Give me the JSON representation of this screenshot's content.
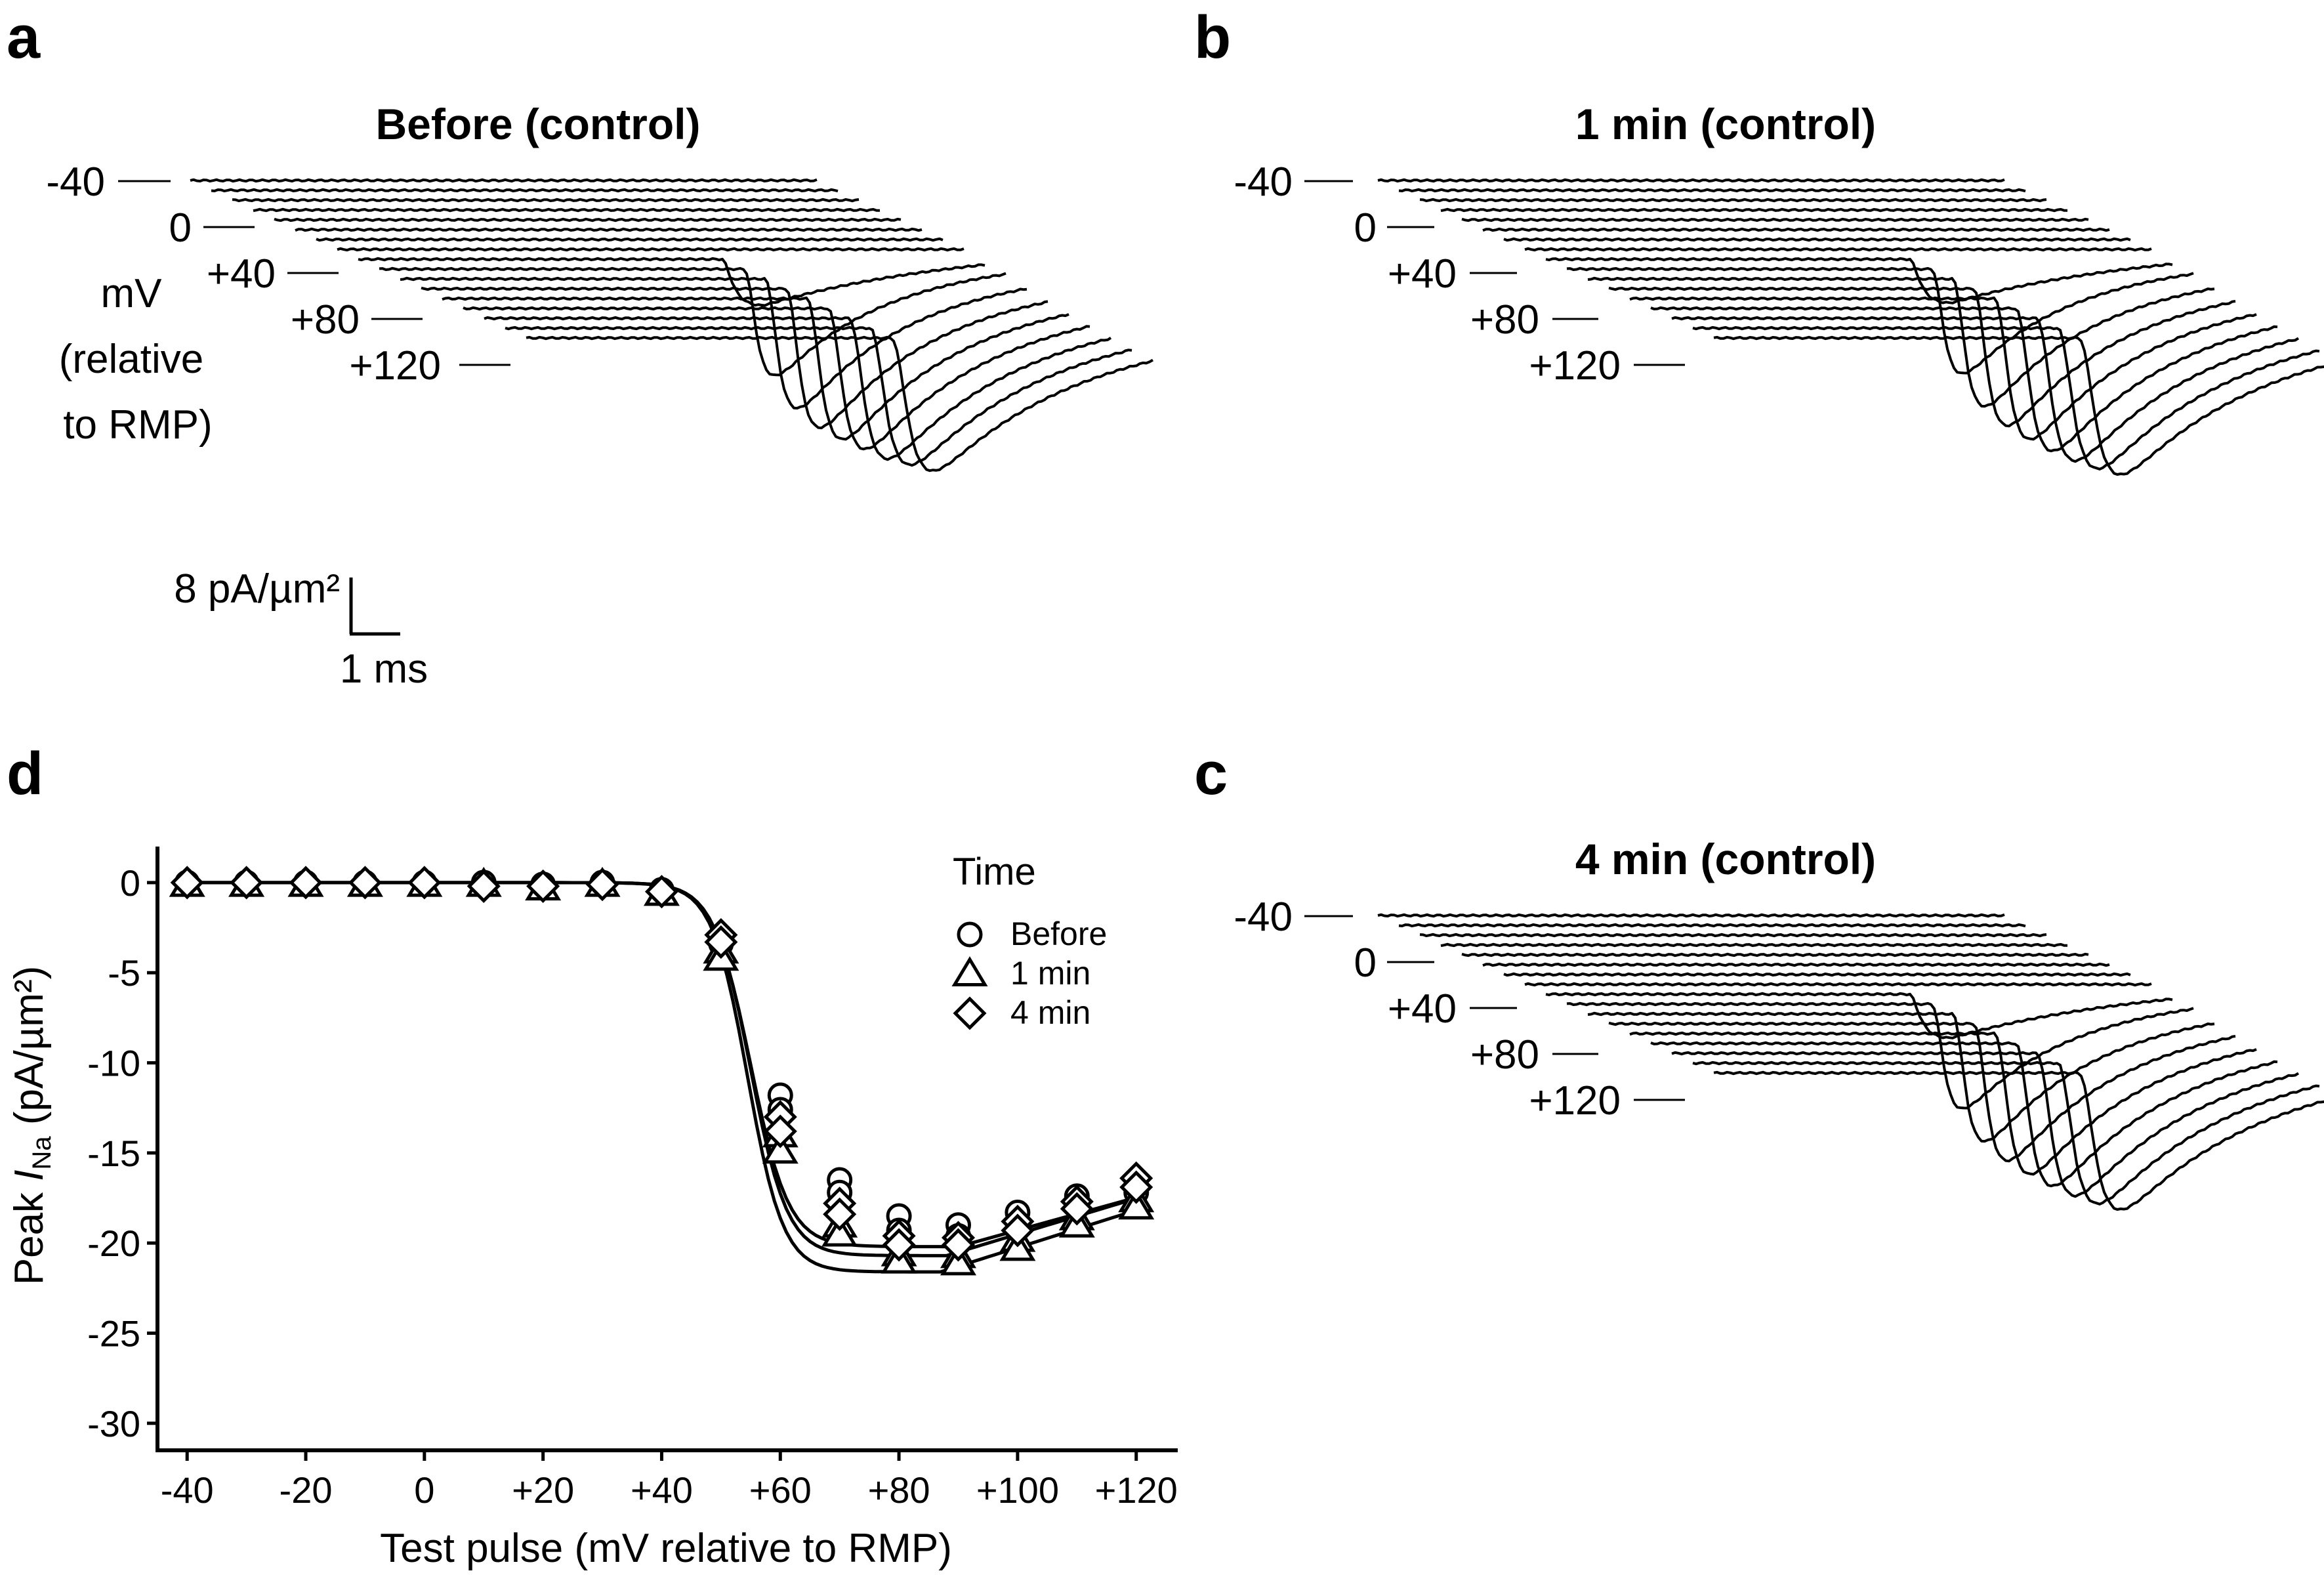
{
  "panels": {
    "a": {
      "letter": "a",
      "title": "Before (control)",
      "peak_depth": [
        0.19,
        0.56,
        0.68,
        0.73,
        0.74,
        0.74,
        0.74,
        0.72,
        0.7
      ]
    },
    "b": {
      "letter": "b",
      "title": "1 min (control)",
      "peak_depth": [
        0.18,
        0.55,
        0.67,
        0.72,
        0.74,
        0.75,
        0.75,
        0.74,
        0.72
      ]
    },
    "c": {
      "letter": "c",
      "title": "4 min (control)",
      "peak_depth": [
        0.18,
        0.55,
        0.67,
        0.72,
        0.74,
        0.75,
        0.75,
        0.74,
        0.72
      ]
    },
    "d": {
      "letter": "d"
    }
  },
  "trace_legend": {
    "voltage_labels": [
      "-40",
      "0",
      "+40",
      "+80",
      "+120"
    ],
    "unit_lines": [
      "mV",
      "(relative",
      "to RMP)"
    ],
    "scale_y_label": "8 pA/µm²",
    "scale_x_label": "1 ms"
  },
  "chart_data": {
    "type": "scatter",
    "title": "",
    "xlabel": "Test pulse (mV relative to RMP)",
    "ylabel_prefix": "Peak ",
    "ylabel_italic": "I",
    "ylabel_sub": "Na",
    "ylabel_suffix": " (pA/µm²)",
    "xlim": [
      -45,
      127
    ],
    "ylim": [
      -31.5,
      2
    ],
    "xticks": [
      -40,
      -20,
      0,
      20,
      40,
      60,
      80,
      100,
      120
    ],
    "xtick_labels": [
      "-40",
      "-20",
      "0",
      "+20",
      "+40",
      "+60",
      "+80",
      "+100",
      "+120"
    ],
    "yticks": [
      0,
      -5,
      -10,
      -15,
      -20,
      -25,
      -30
    ],
    "ytick_labels": [
      "0",
      "-5",
      "-10",
      "-15",
      "-20",
      "-25",
      "-30"
    ],
    "legend_title": "Time",
    "legend_position": "top-right",
    "x": [
      -40,
      -30,
      -20,
      -10,
      0,
      10,
      20,
      30,
      40,
      50,
      60,
      70,
      80,
      90,
      100,
      110,
      120
    ],
    "series": [
      {
        "name": "Before",
        "marker": "circle",
        "points": [
          [
            -40,
            0
          ],
          [
            -30,
            0
          ],
          [
            -20,
            0
          ],
          [
            -10,
            0
          ],
          [
            0,
            0
          ],
          [
            10,
            0
          ],
          [
            20,
            -0.1
          ],
          [
            30,
            0
          ],
          [
            40,
            -0.4
          ],
          [
            50,
            -3.0
          ],
          [
            50,
            -3.4
          ],
          [
            60,
            -11.8
          ],
          [
            60,
            -12.6
          ],
          [
            70,
            -16.5
          ],
          [
            70,
            -17.2
          ],
          [
            80,
            -18.5
          ],
          [
            80,
            -19.3
          ],
          [
            90,
            -19.0
          ],
          [
            90,
            -19.6
          ],
          [
            100,
            -18.3
          ],
          [
            100,
            -18.9
          ],
          [
            110,
            -17.4
          ],
          [
            110,
            -17.9
          ],
          [
            120,
            -16.8
          ],
          [
            120,
            -17.2
          ]
        ]
      },
      {
        "name": "1 min",
        "marker": "triangle",
        "points": [
          [
            -40,
            -0.1
          ],
          [
            -30,
            -0.1
          ],
          [
            -20,
            -0.1
          ],
          [
            -10,
            -0.1
          ],
          [
            0,
            -0.1
          ],
          [
            10,
            -0.1
          ],
          [
            20,
            -0.3
          ],
          [
            30,
            -0.1
          ],
          [
            40,
            -0.6
          ],
          [
            50,
            -3.8
          ],
          [
            50,
            -4.2
          ],
          [
            60,
            -14.0
          ],
          [
            60,
            -14.9
          ],
          [
            70,
            -19.0
          ],
          [
            70,
            -19.5
          ],
          [
            80,
            -20.6
          ],
          [
            80,
            -21.0
          ],
          [
            90,
            -20.7
          ],
          [
            90,
            -21.1
          ],
          [
            100,
            -19.8
          ],
          [
            100,
            -20.3
          ],
          [
            110,
            -18.6
          ],
          [
            110,
            -19.0
          ],
          [
            120,
            -17.6
          ],
          [
            120,
            -18.0
          ]
        ]
      },
      {
        "name": "4 min",
        "marker": "diamond",
        "points": [
          [
            -40,
            0
          ],
          [
            -30,
            0
          ],
          [
            -20,
            0
          ],
          [
            -10,
            0
          ],
          [
            0,
            0
          ],
          [
            10,
            -0.2
          ],
          [
            20,
            -0.2
          ],
          [
            30,
            -0.1
          ],
          [
            40,
            -0.5
          ],
          [
            50,
            -2.9
          ],
          [
            50,
            -3.3
          ],
          [
            60,
            -13.0
          ],
          [
            60,
            -13.8
          ],
          [
            70,
            -17.8
          ],
          [
            70,
            -18.4
          ],
          [
            80,
            -19.6
          ],
          [
            80,
            -20.1
          ],
          [
            90,
            -19.7
          ],
          [
            90,
            -20.1
          ],
          [
            100,
            -18.8
          ],
          [
            100,
            -19.3
          ],
          [
            110,
            -17.7
          ],
          [
            110,
            -18.1
          ],
          [
            120,
            -16.4
          ],
          [
            120,
            -16.9
          ]
        ]
      }
    ],
    "fit_curves": [
      {
        "name": "Before",
        "mid": 55,
        "slope": 3.2,
        "amp": -20.2,
        "x0": 90,
        "a": 0.0045
      },
      {
        "name": "1 min",
        "mid": 54.5,
        "slope": 3.0,
        "amp": -21.6,
        "x0": 87,
        "a": 0.0048
      },
      {
        "name": "4 min",
        "mid": 55,
        "slope": 3.1,
        "amp": -20.7,
        "x0": 88,
        "a": 0.0048
      }
    ]
  }
}
